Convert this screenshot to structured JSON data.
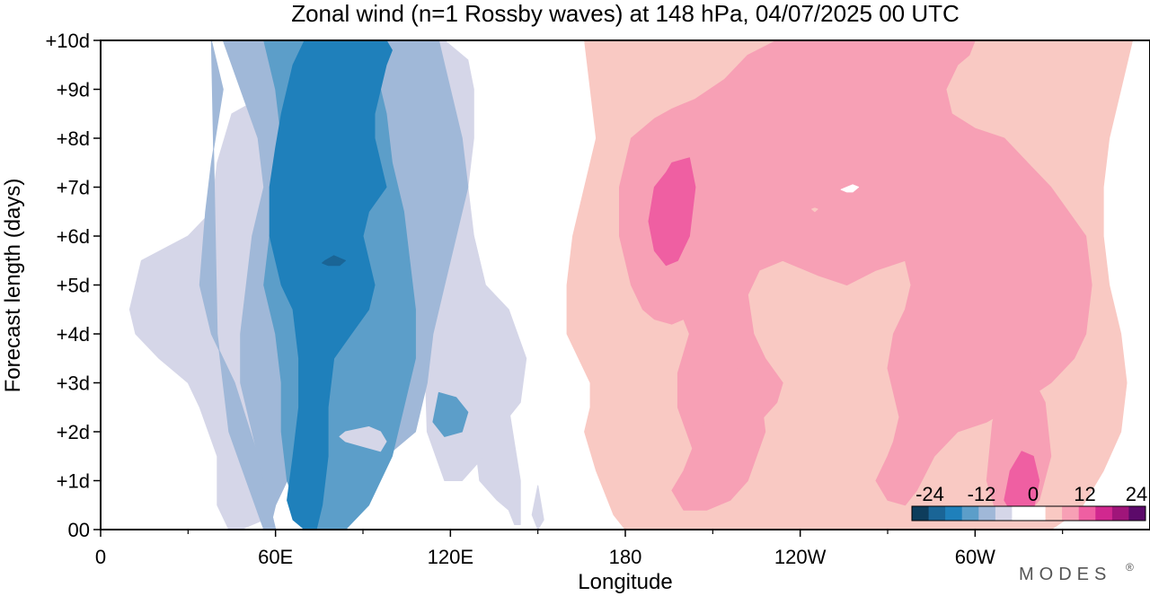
{
  "chart_data": {
    "type": "heatmap",
    "title": "Zonal wind (n=1 Rossby waves) at 148 hPa,  04/07/2025  00 UTC",
    "xlabel": "Longitude",
    "ylabel": "Forecast length (days)",
    "x_ticks": [
      {
        "lon": 0,
        "label": "0"
      },
      {
        "lon": 60,
        "label": "60E"
      },
      {
        "lon": 120,
        "label": "120E"
      },
      {
        "lon": 180,
        "label": "180"
      },
      {
        "lon": 240,
        "label": "120W"
      },
      {
        "lon": 300,
        "label": "60W"
      }
    ],
    "x_minor_ticks": [
      30,
      90,
      150,
      210,
      270,
      330
    ],
    "xlim": [
      0,
      360
    ],
    "y_ticks": [
      {
        "day": 0,
        "label": "00"
      },
      {
        "day": 1,
        "label": "+1d"
      },
      {
        "day": 2,
        "label": "+2d"
      },
      {
        "day": 3,
        "label": "+3d"
      },
      {
        "day": 4,
        "label": "+4d"
      },
      {
        "day": 5,
        "label": "+5d"
      },
      {
        "day": 6,
        "label": "+6d"
      },
      {
        "day": 7,
        "label": "+7d"
      },
      {
        "day": 8,
        "label": "+8d"
      },
      {
        "day": 9,
        "label": "+9d"
      },
      {
        "day": 10,
        "label": "+10d"
      }
    ],
    "ylim": [
      0,
      10
    ],
    "colorbar": {
      "labels": [
        "-24",
        "-12",
        "0",
        "12",
        "24"
      ],
      "colors": [
        "#0e3d5c",
        "#1a6596",
        "#1f80bb",
        "#5c9ec9",
        "#a0b8d8",
        "#d5d6e8",
        "#ffffff",
        "#ffffff",
        "#f9c9c3",
        "#f7a0b5",
        "#ef5fa2",
        "#d1288f",
        "#a0157a",
        "#5c0a6a"
      ]
    },
    "regions": [
      {
        "name": "neg-light",
        "color": "#d5d6e8",
        "lon": [
          56,
          60,
          45,
          40,
          38,
          30,
          14,
          10,
          12,
          20,
          30,
          34,
          40,
          40,
          44,
          48,
          56,
          58,
          60,
          58,
          60,
          62,
          66,
          70,
          78,
          84,
          90,
          96,
          102,
          108,
          112,
          114,
          116,
          118,
          120,
          124,
          128,
          130,
          136,
          140,
          142,
          144,
          144,
          140,
          136,
          132,
          128,
          122,
          118,
          112,
          110,
          110,
          108,
          100,
          92,
          84,
          76,
          70,
          64,
          58,
          56
        ],
        "day": [
          10,
          9,
          8.5,
          7.5,
          6.5,
          6,
          5.5,
          4.5,
          4,
          3.5,
          3,
          2.5,
          1.5,
          0.5,
          0,
          0,
          0.2,
          0.5,
          1,
          1.5,
          2,
          3,
          4,
          5,
          6,
          7,
          7.5,
          8,
          8,
          7.5,
          7,
          6,
          5,
          4,
          3,
          2.5,
          2,
          1,
          0.6,
          0.4,
          0.1,
          0.1,
          1,
          2.5,
          3.5,
          5,
          6,
          7,
          8,
          8.5,
          9,
          10,
          10,
          9.8,
          9.8,
          9.8,
          9.9,
          9.9,
          10,
          10,
          10
        ]
      },
      {
        "name": "neg-light-right",
        "color": "#d5d6e8",
        "lon": [
          108,
          118,
          126,
          128,
          128,
          126,
          128,
          132,
          140,
          146,
          144,
          136,
          130,
          124,
          118,
          112,
          108
        ],
        "day": [
          10,
          10,
          9.6,
          9,
          8,
          7,
          6,
          5,
          4.5,
          3.5,
          2.6,
          2,
          1.4,
          1,
          1,
          2,
          10
        ]
      },
      {
        "name": "neg-band1",
        "color": "#a0b8d8",
        "lon": [
          38,
          42,
          38,
          36,
          34,
          38,
          46,
          54,
          60,
          56,
          50,
          44,
          40,
          38
        ],
        "day": [
          10,
          9,
          7.5,
          6.5,
          5,
          4,
          3,
          1.5,
          0,
          0,
          1,
          2,
          4,
          10
        ]
      },
      {
        "name": "neg-band1-main",
        "color": "#a0b8d8",
        "lon": [
          42,
          48,
          54,
          56,
          52,
          50,
          48,
          48,
          52,
          56,
          60,
          58,
          60,
          64,
          70,
          78,
          84,
          90,
          98,
          108,
          112,
          114,
          118,
          122,
          126,
          124,
          122,
          120,
          118,
          116,
          112,
          108,
          104,
          98,
          92,
          86,
          78,
          70,
          62,
          56,
          50,
          44,
          42
        ],
        "day": [
          10,
          9,
          8,
          7,
          6,
          5,
          4,
          3,
          2,
          1,
          0,
          0,
          0.5,
          1,
          1.5,
          1.5,
          1.3,
          1.5,
          1.5,
          2,
          3,
          4,
          5,
          6,
          7,
          8,
          8.5,
          9,
          9.5,
          10,
          10,
          10,
          10,
          10,
          10,
          10,
          10,
          10,
          10,
          10,
          10,
          10,
          10
        ]
      },
      {
        "name": "neg-band2",
        "color": "#5c9ec9",
        "lon": [
          56,
          60,
          62,
          60,
          58,
          56,
          60,
          62,
          62,
          64,
          70,
          76,
          84,
          92,
          100,
          104,
          108,
          108,
          106,
          104,
          100,
          98,
          96,
          94,
          92,
          90,
          86,
          80,
          74,
          68,
          62,
          58,
          56
        ],
        "day": [
          10,
          9,
          8,
          7,
          6,
          5,
          4,
          3,
          2,
          1,
          0,
          0,
          0,
          0.5,
          1.5,
          2.5,
          3.5,
          4.5,
          5.5,
          6.5,
          7.5,
          8.5,
          9,
          9.5,
          10,
          10,
          10,
          10,
          10,
          10,
          10,
          10,
          10
        ]
      },
      {
        "name": "neg-core",
        "color": "#1f80bb",
        "lon": [
          70,
          66,
          62,
          60,
          58,
          58,
          62,
          66,
          68,
          68,
          66,
          64,
          66,
          70,
          74,
          76,
          78,
          78,
          80,
          86,
          92,
          94,
          92,
          90,
          92,
          98,
          96,
          94,
          94,
          96,
          98,
          100,
          98,
          94,
          90,
          84,
          78,
          74,
          70
        ],
        "day": [
          10,
          9.5,
          8.5,
          7.8,
          7,
          6,
          5,
          4.5,
          3.5,
          2.5,
          1.5,
          0.6,
          0.2,
          0,
          0,
          0.5,
          1.5,
          2.5,
          3.5,
          4,
          4.5,
          5,
          5.5,
          6,
          6.5,
          7,
          7.5,
          8,
          8.5,
          9,
          9.5,
          9.8,
          10,
          10,
          10,
          10,
          10,
          10,
          10
        ]
      },
      {
        "name": "neg-dark",
        "color": "#1a6596",
        "lon": [
          77,
          80,
          84,
          82,
          78,
          76,
          77
        ],
        "day": [
          5.5,
          5.6,
          5.5,
          5.4,
          5.4,
          5.45,
          5.5
        ]
      },
      {
        "name": "neg-hole-light",
        "color": "#d5d6e8",
        "lon": [
          84,
          92,
          96,
          98,
          96,
          90,
          84,
          82,
          84
        ],
        "day": [
          2.0,
          2.1,
          2.0,
          1.8,
          1.6,
          1.7,
          1.8,
          1.9,
          2.0
        ]
      },
      {
        "name": "neg-right-blob",
        "color": "#5c9ec9",
        "lon": [
          116,
          122,
          126,
          124,
          118,
          114,
          116
        ],
        "day": [
          2.8,
          2.7,
          2.4,
          2.0,
          1.9,
          2.2,
          2.8
        ]
      },
      {
        "name": "pos-light",
        "color": "#f9c9c3",
        "lon": [
          166,
          168,
          170,
          166,
          162,
          160,
          160,
          164,
          168,
          168,
          166,
          170,
          176,
          180,
          186,
          190,
          196,
          200,
          206,
          214,
          224,
          232,
          240,
          248,
          256,
          260,
          262,
          266,
          272,
          278,
          288,
          300,
          316,
          326,
          336,
          344,
          350,
          352,
          350,
          346,
          344,
          344,
          346,
          350,
          354,
          358,
          360,
          360,
          352,
          344,
          336,
          324,
          310,
          300,
          290,
          280,
          270,
          260,
          250,
          240,
          226,
          212,
          200,
          190,
          180,
          172,
          166
        ],
        "day": [
          10,
          9,
          8,
          7,
          6,
          5,
          4,
          3.5,
          3,
          2.5,
          2,
          1.2,
          0.3,
          0,
          0,
          0,
          0,
          0,
          0,
          0,
          0,
          0,
          0,
          0,
          0,
          0,
          0,
          0,
          0,
          0,
          0,
          0,
          0,
          0,
          0.4,
          1.2,
          2,
          3,
          4,
          5,
          6,
          7,
          8,
          9,
          10,
          10,
          10,
          10,
          10,
          10,
          10,
          10,
          10,
          10,
          10,
          10,
          10,
          10,
          10,
          10,
          10,
          10,
          10,
          10,
          10,
          10,
          10
        ]
      },
      {
        "name": "pos-mid-top",
        "color": "#f7a0b5",
        "lon": [
          182,
          180,
          178,
          178,
          182,
          186,
          190,
          196,
          200,
          202,
          198,
          198,
          204,
          210,
          214,
          220,
          226,
          232,
          234,
          228,
          224,
          222,
          226,
          234,
          246,
          256,
          266,
          276,
          278,
          276,
          272,
          270,
          272,
          274,
          272,
          270,
          266,
          270,
          276,
          280,
          286,
          294,
          304,
          316,
          326,
          334,
          338,
          340,
          338,
          332,
          326,
          318,
          310,
          300,
          292,
          290,
          294,
          298,
          300,
          298,
          292,
          282,
          272,
          258,
          244,
          232,
          222,
          214,
          204,
          196,
          190,
          186,
          182
        ],
        "day": [
          8,
          7.5,
          7,
          6,
          5,
          4.5,
          4.3,
          4.2,
          4.3,
          4.0,
          3.2,
          2.5,
          1.5,
          1.2,
          1.5,
          2,
          2.2,
          2.6,
          3.0,
          3.5,
          4,
          4.8,
          5.3,
          5.5,
          5.2,
          5.0,
          5.3,
          5.5,
          5.0,
          4.5,
          4.0,
          3.3,
          2.8,
          2.3,
          1.8,
          1.5,
          1.0,
          0.6,
          0.5,
          0.8,
          1.5,
          2,
          2.2,
          2.6,
          3.0,
          3.5,
          4,
          5,
          6,
          6.5,
          7,
          7.5,
          8,
          8.2,
          8.5,
          9.0,
          9.5,
          9.7,
          10,
          10,
          10,
          10,
          10,
          10,
          10,
          10,
          9.7,
          9.2,
          8.8,
          8.6,
          8.4,
          8.2,
          8
        ]
      },
      {
        "name": "pos-lower-blob",
        "color": "#f7a0b5",
        "lon": [
          200,
          204,
          210,
          216,
          222,
          226,
          228,
          222,
          216,
          208,
          200,
          196,
          198,
          200
        ],
        "day": [
          1.2,
          1.8,
          2.6,
          3.2,
          3.4,
          3.0,
          2.0,
          1.0,
          0.6,
          0.4,
          0.4,
          0.8,
          1.0,
          1.2
        ]
      },
      {
        "name": "pos-right-blob",
        "color": "#f7a0b5",
        "lon": [
          310,
          318,
          324,
          326,
          322,
          316,
          308,
          304,
          306,
          310
        ],
        "day": [
          3.0,
          3.3,
          2.6,
          1.5,
          0.6,
          0.2,
          0.2,
          1.0,
          2.2,
          3.0
        ]
      },
      {
        "name": "pos-strong",
        "color": "#ef5fa2",
        "lon": [
          196,
          202,
          204,
          202,
          198,
          194,
          190,
          188,
          190,
          194,
          196
        ],
        "day": [
          7.5,
          7.6,
          7.0,
          6.0,
          5.5,
          5.4,
          5.7,
          6.3,
          7.0,
          7.3,
          7.5
        ]
      },
      {
        "name": "pos-strong-right",
        "color": "#ef5fa2",
        "lon": [
          316,
          320,
          322,
          320,
          314,
          310,
          312,
          316
        ],
        "day": [
          1.6,
          1.5,
          1.0,
          0.4,
          0.2,
          0.6,
          1.2,
          1.6
        ]
      },
      {
        "name": "pos-hole-1",
        "color": "#ffffff",
        "lon": [
          256,
          258,
          260,
          258,
          256,
          254,
          256
        ],
        "day": [
          7.0,
          7.05,
          7.0,
          6.9,
          6.9,
          6.95,
          7.0
        ]
      },
      {
        "name": "pos-hole-2",
        "color": "#f9c9c3",
        "lon": [
          244,
          245,
          246,
          245,
          244
        ],
        "day": [
          6.55,
          6.57,
          6.55,
          6.5,
          6.55
        ]
      },
      {
        "name": "blue-blip",
        "color": "#d5d6e8",
        "lon": [
          150,
          152,
          150,
          148,
          150
        ],
        "day": [
          0.9,
          0.2,
          0,
          0.3,
          0.9
        ]
      }
    ]
  },
  "brand": "MODES",
  "brand_mark": "®"
}
